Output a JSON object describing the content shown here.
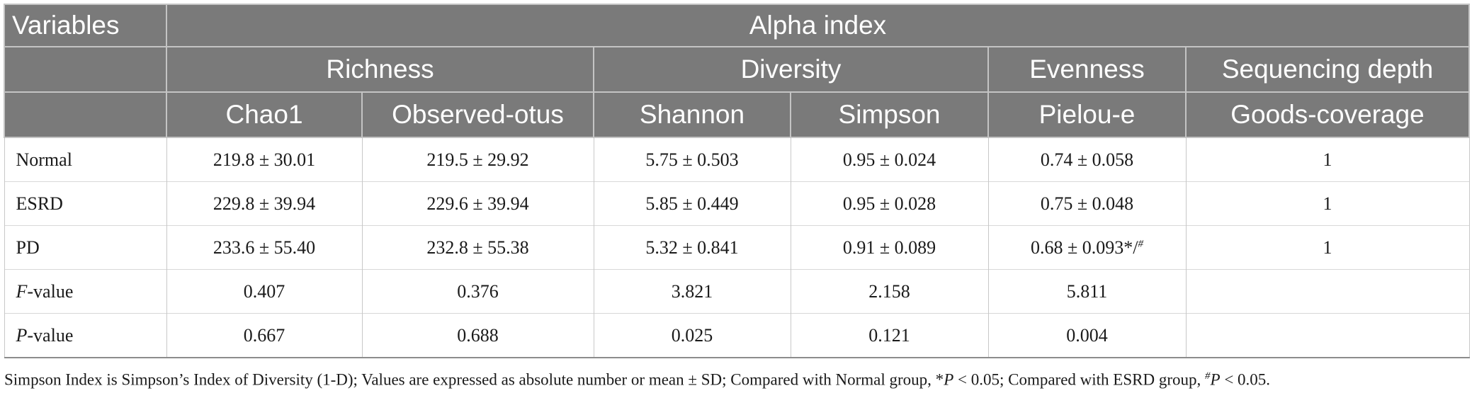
{
  "table": {
    "variables_label": "Variables",
    "alpha_label": "Alpha index",
    "groups": {
      "richness": "Richness",
      "diversity": "Diversity",
      "evenness": "Evenness",
      "sequencing_depth": "Sequencing depth"
    },
    "columns": {
      "chao1": "Chao1",
      "observed_otus": "Observed-otus",
      "shannon": "Shannon",
      "simpson": "Simpson",
      "pielou_e": "Pielou-e",
      "goods_coverage": "Goods-coverage"
    },
    "rows": [
      {
        "label": "Normal",
        "chao1": "219.8 ± 30.01",
        "observed": "219.5 ± 29.92",
        "shannon": "5.75 ± 0.503",
        "simpson": "0.95 ± 0.024",
        "pielou": "0.74 ± 0.058",
        "goods": "1"
      },
      {
        "label": "ESRD",
        "chao1": "229.8 ± 39.94",
        "observed": "229.6 ± 39.94",
        "shannon": "5.85 ± 0.449",
        "simpson": "0.95 ± 0.028",
        "pielou": "0.75 ± 0.048",
        "goods": "1"
      },
      {
        "label": "PD",
        "chao1": "233.6 ± 55.40",
        "observed": "232.8 ± 55.38",
        "shannon": "5.32 ± 0.841",
        "simpson": "0.91 ± 0.089",
        "pielou": "0.68 ± 0.093*/",
        "pielou_sup": "#",
        "goods": "1"
      }
    ],
    "f_row": {
      "label_italic": "F",
      "label_rest": "-value",
      "chao1": "0.407",
      "observed": "0.376",
      "shannon": "3.821",
      "simpson": "2.158",
      "pielou": "5.811",
      "goods": ""
    },
    "p_row": {
      "label_italic": "P",
      "label_rest": "-value",
      "chao1": "0.667",
      "observed": "0.688",
      "shannon": "0.025",
      "simpson": "0.121",
      "pielou": "0.004",
      "goods": ""
    }
  },
  "footnote": {
    "part1": "Simpson Index is Simpson’s Index of Diversity (1-D); Values are expressed as absolute number or mean ± SD; Compared with Normal group, *",
    "p1": "P",
    "part2": " < 0.05; Compared with ESRD group, ",
    "hash": "#",
    "p2": "P",
    "part3": " < 0.05."
  }
}
